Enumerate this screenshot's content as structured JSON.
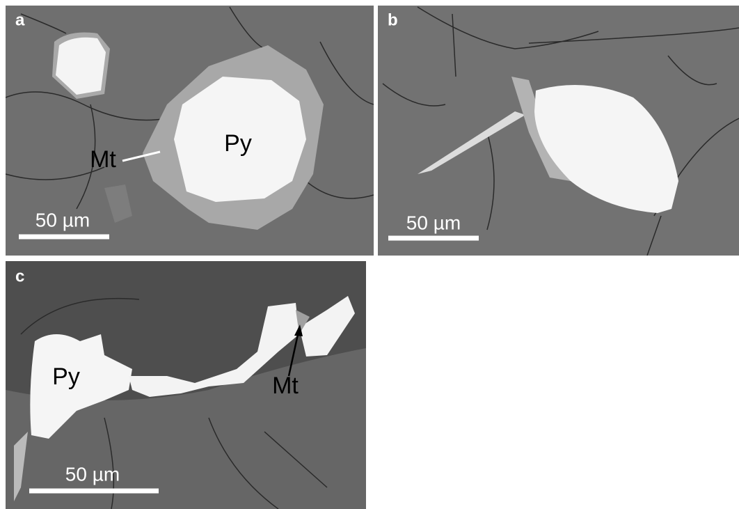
{
  "panels": [
    {
      "label": "a",
      "scale_bar": "50 µm",
      "annotations": [
        "Py",
        "Mt"
      ]
    },
    {
      "label": "b",
      "scale_bar": "50 µm"
    },
    {
      "label": "c",
      "scale_bar": "50 µm",
      "annotations": [
        "Py",
        "Mt"
      ]
    }
  ]
}
